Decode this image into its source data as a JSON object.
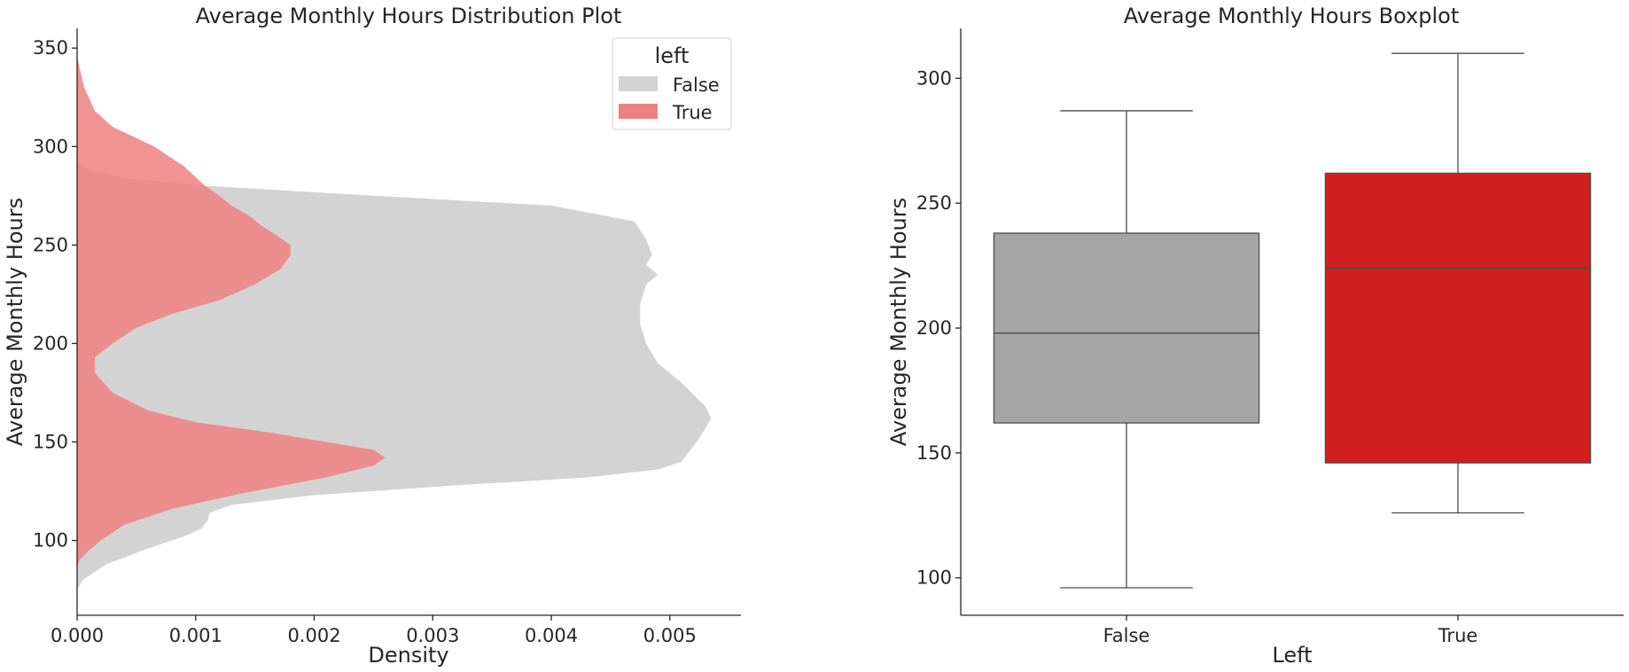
{
  "chart_data": [
    {
      "type": "area",
      "orientation": "horizontal-density",
      "title": "Average Monthly Hours Distribution Plot",
      "xlabel": "Density",
      "ylabel": "Average Monthly Hours",
      "xlim": [
        0,
        0.0056
      ],
      "ylim": [
        62,
        360
      ],
      "xticks": [
        0,
        0.001,
        0.002,
        0.003,
        0.004,
        0.005
      ],
      "xtick_labels": [
        "0.000",
        "0.001",
        "0.002",
        "0.003",
        "0.004",
        "0.005"
      ],
      "yticks": [
        100,
        150,
        200,
        250,
        300,
        350
      ],
      "ytick_labels": [
        "100",
        "150",
        "200",
        "250",
        "300",
        "350"
      ],
      "grid": false,
      "legend": {
        "title": "left",
        "position": "top-right"
      },
      "series": [
        {
          "name": "False",
          "color": "#d3d3d3",
          "points": [
            [
              0,
              75
            ],
            [
              5e-05,
              80
            ],
            [
              0.00025,
              88
            ],
            [
              0.0006,
              96
            ],
            [
              0.0009,
              102
            ],
            [
              0.00105,
              106
            ],
            [
              0.0011,
              110
            ],
            [
              0.00112,
              114
            ],
            [
              0.0013,
              118
            ],
            [
              0.002,
              123
            ],
            [
              0.0032,
              128
            ],
            [
              0.0043,
              132
            ],
            [
              0.0049,
              136
            ],
            [
              0.0051,
              140
            ],
            [
              0.00515,
              144
            ],
            [
              0.0052,
              148
            ],
            [
              0.00525,
              152
            ],
            [
              0.0053,
              157
            ],
            [
              0.00535,
              162
            ],
            [
              0.0053,
              168
            ],
            [
              0.0051,
              180
            ],
            [
              0.0049,
              190
            ],
            [
              0.0048,
              200
            ],
            [
              0.00475,
              210
            ],
            [
              0.00475,
              220
            ],
            [
              0.0048,
              230
            ],
            [
              0.0049,
              235
            ],
            [
              0.0048,
              240
            ],
            [
              0.00485,
              245
            ],
            [
              0.0048,
              253
            ],
            [
              0.0047,
              262
            ],
            [
              0.004,
              270
            ],
            [
              0.0025,
              275
            ],
            [
              0.0011,
              280
            ],
            [
              0.0004,
              284
            ],
            [
              0.0001,
              288
            ],
            [
              0,
              292
            ]
          ]
        },
        {
          "name": "True",
          "color": "#f08080",
          "points": [
            [
              0,
              86
            ],
            [
              2e-05,
              90
            ],
            [
              0.0001,
              95
            ],
            [
              0.0002,
              100
            ],
            [
              0.0004,
              108
            ],
            [
              0.0008,
              116
            ],
            [
              0.0014,
              124
            ],
            [
              0.0021,
              132
            ],
            [
              0.0025,
              138
            ],
            [
              0.0026,
              142
            ],
            [
              0.0025,
              146
            ],
            [
              0.0021,
              150
            ],
            [
              0.0016,
              155
            ],
            [
              0.001,
              160
            ],
            [
              0.0006,
              166
            ],
            [
              0.0003,
              175
            ],
            [
              0.00015,
              185
            ],
            [
              0.00015,
              193
            ],
            [
              0.0003,
              200
            ],
            [
              0.0005,
              208
            ],
            [
              0.0008,
              215
            ],
            [
              0.0012,
              222
            ],
            [
              0.0015,
              230
            ],
            [
              0.00172,
              238
            ],
            [
              0.0018,
              245
            ],
            [
              0.0018,
              250
            ],
            [
              0.00168,
              255
            ],
            [
              0.00155,
              260
            ],
            [
              0.00145,
              265
            ],
            [
              0.0013,
              270
            ],
            [
              0.0012,
              275
            ],
            [
              0.00108,
              280
            ],
            [
              0.0009,
              290
            ],
            [
              0.00065,
              300
            ],
            [
              0.0003,
              310
            ],
            [
              0.00015,
              318
            ],
            [
              6e-05,
              330
            ],
            [
              2e-05,
              340
            ],
            [
              0,
              346
            ]
          ]
        }
      ]
    },
    {
      "type": "box",
      "title": "Average Monthly Hours Boxplot",
      "xlabel": "Left",
      "ylabel": "Average Monthly Hours",
      "ylim": [
        85,
        320
      ],
      "yticks": [
        100,
        150,
        200,
        250,
        300
      ],
      "ytick_labels": [
        "100",
        "150",
        "200",
        "250",
        "300"
      ],
      "categories": [
        "False",
        "True"
      ],
      "grid": false,
      "boxes": [
        {
          "label": "False",
          "color": "#a5a5a5",
          "whisker_low": 96,
          "q1": 162,
          "median": 198,
          "q3": 238,
          "whisker_high": 287
        },
        {
          "label": "True",
          "color": "#d21f1f",
          "whisker_low": 126,
          "q1": 146,
          "median": 224,
          "q3": 262,
          "whisker_high": 310
        }
      ]
    }
  ]
}
